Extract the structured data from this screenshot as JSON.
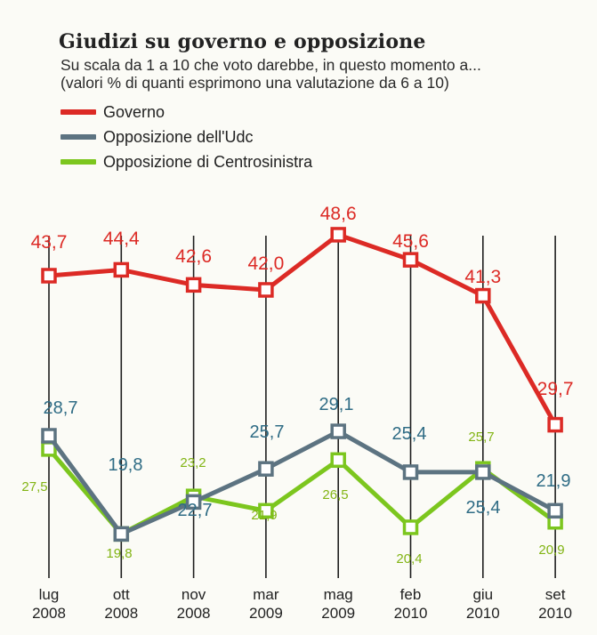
{
  "chart_data": {
    "type": "line",
    "title": "Giudizi su governo e opposizione",
    "subtitle_lines": [
      "Su scala da 1 a 10 che voto darebbe, in questo momento a...",
      "(valori % di quanti esprimono una valutazione da 6 a 10)"
    ],
    "categories": [
      {
        "month": "lug",
        "year": "2008"
      },
      {
        "month": "ott",
        "year": "2008"
      },
      {
        "month": "nov",
        "year": "2008"
      },
      {
        "month": "mar",
        "year": "2009"
      },
      {
        "month": "mag",
        "year": "2009"
      },
      {
        "month": "feb",
        "year": "2010"
      },
      {
        "month": "giu",
        "year": "2010"
      },
      {
        "month": "set",
        "year": "2010"
      }
    ],
    "series": [
      {
        "name": "Governo",
        "color": "#dc2a25",
        "values": [
          43.7,
          44.4,
          42.6,
          42.0,
          48.6,
          45.6,
          41.3,
          29.7
        ],
        "labels": [
          "43,7",
          "44,4",
          "42,6",
          "42,0",
          "48,6",
          "45,6",
          "41,3",
          "29,7"
        ]
      },
      {
        "name": "Opposizione dell'Udc",
        "color": "#5c7381",
        "label_color": "#2f6c85",
        "values": [
          28.7,
          19.8,
          22.7,
          25.7,
          29.1,
          25.4,
          25.4,
          21.9
        ],
        "labels": [
          "28,7",
          "19,8",
          "22,7",
          "25,7",
          "29,1",
          "25,4",
          "25,4",
          "21,9"
        ]
      },
      {
        "name": "Opposizione di Centrosinistra",
        "color": "#7cc61e",
        "label_color": "#82b414",
        "values": [
          27.5,
          19.8,
          23.2,
          21.9,
          26.5,
          20.4,
          25.7,
          20.9
        ],
        "labels": [
          "27,5",
          "19,8",
          "23,2",
          "21,9",
          "26,5",
          "20,4",
          "25,7",
          "20,9"
        ]
      }
    ],
    "xlabel": "",
    "ylabel": "",
    "grid": false,
    "legend": "top-left"
  }
}
